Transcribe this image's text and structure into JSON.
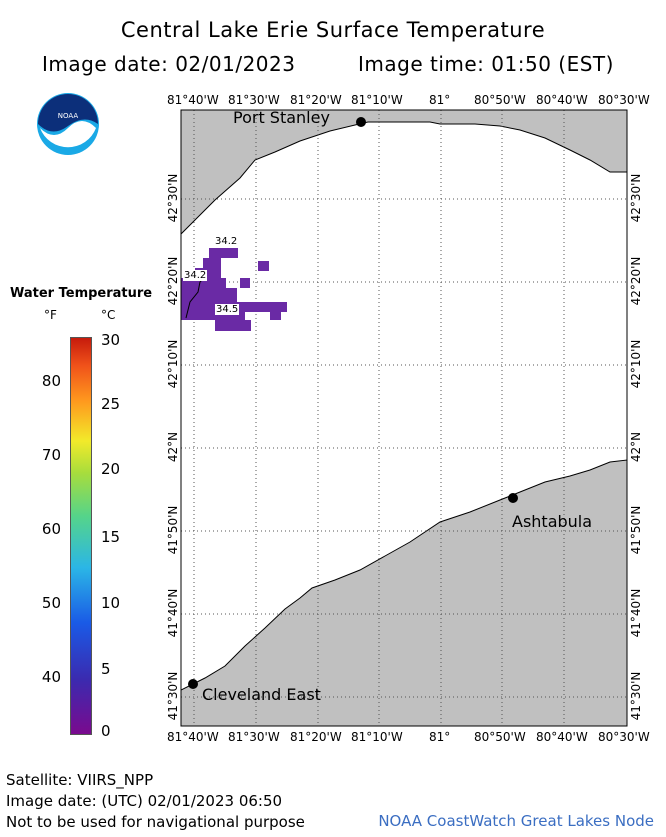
{
  "header": {
    "title": "Central Lake Erie Surface Temperature",
    "image_date_label": "Image date: 02/01/2023",
    "image_time_label": "Image time: 01:50 (EST)"
  },
  "logo": {
    "name": "noaa-logo",
    "text": "NOAA"
  },
  "axes": {
    "top_longitudes": [
      "81°40'W",
      "81°30'W",
      "81°20'W",
      "81°10'W",
      "81°",
      "80°50'W",
      "80°40'W",
      "80°30'W"
    ],
    "bottom_longitudes": [
      "81°40'W",
      "81°30'W",
      "81°20'W",
      "81°10'W",
      "81°",
      "80°50'W",
      "80°40'W",
      "80°30'W"
    ],
    "left_latitudes": [
      "42°30'N",
      "42°20'N",
      "42°10'N",
      "42°N",
      "41°50'N",
      "41°40'N",
      "41°30'N"
    ],
    "right_latitudes": [
      "42°30'N",
      "42°20'N",
      "42°10'N",
      "42°N",
      "41°50'N",
      "41°40'N",
      "41°30'N"
    ]
  },
  "places": [
    {
      "name": "Port Stanley"
    },
    {
      "name": "Ashtabula"
    },
    {
      "name": "Cleveland East"
    }
  ],
  "temperature_labels": [
    "34.2",
    "34.2",
    "34.5"
  ],
  "legend": {
    "title": "Water Temperature",
    "f_unit": "°F",
    "c_unit": "°C",
    "f_ticks": [
      "80",
      "70",
      "60",
      "50",
      "40"
    ],
    "c_ticks": [
      "30",
      "25",
      "20",
      "15",
      "10",
      "5",
      "0"
    ]
  },
  "colors": {
    "land": "#c0c0c0",
    "water": "#ffffff",
    "temperature_patch": "#6a2aa5",
    "credit_text": "#3b6ec2"
  },
  "footer": {
    "satellite": "Satellite: VIIRS_NPP",
    "utc_date": "Image date: (UTC) 02/01/2023  06:50",
    "disclaimer": "Not to be used for navigational purpose",
    "credit": "NOAA CoastWatch Great Lakes Node"
  }
}
